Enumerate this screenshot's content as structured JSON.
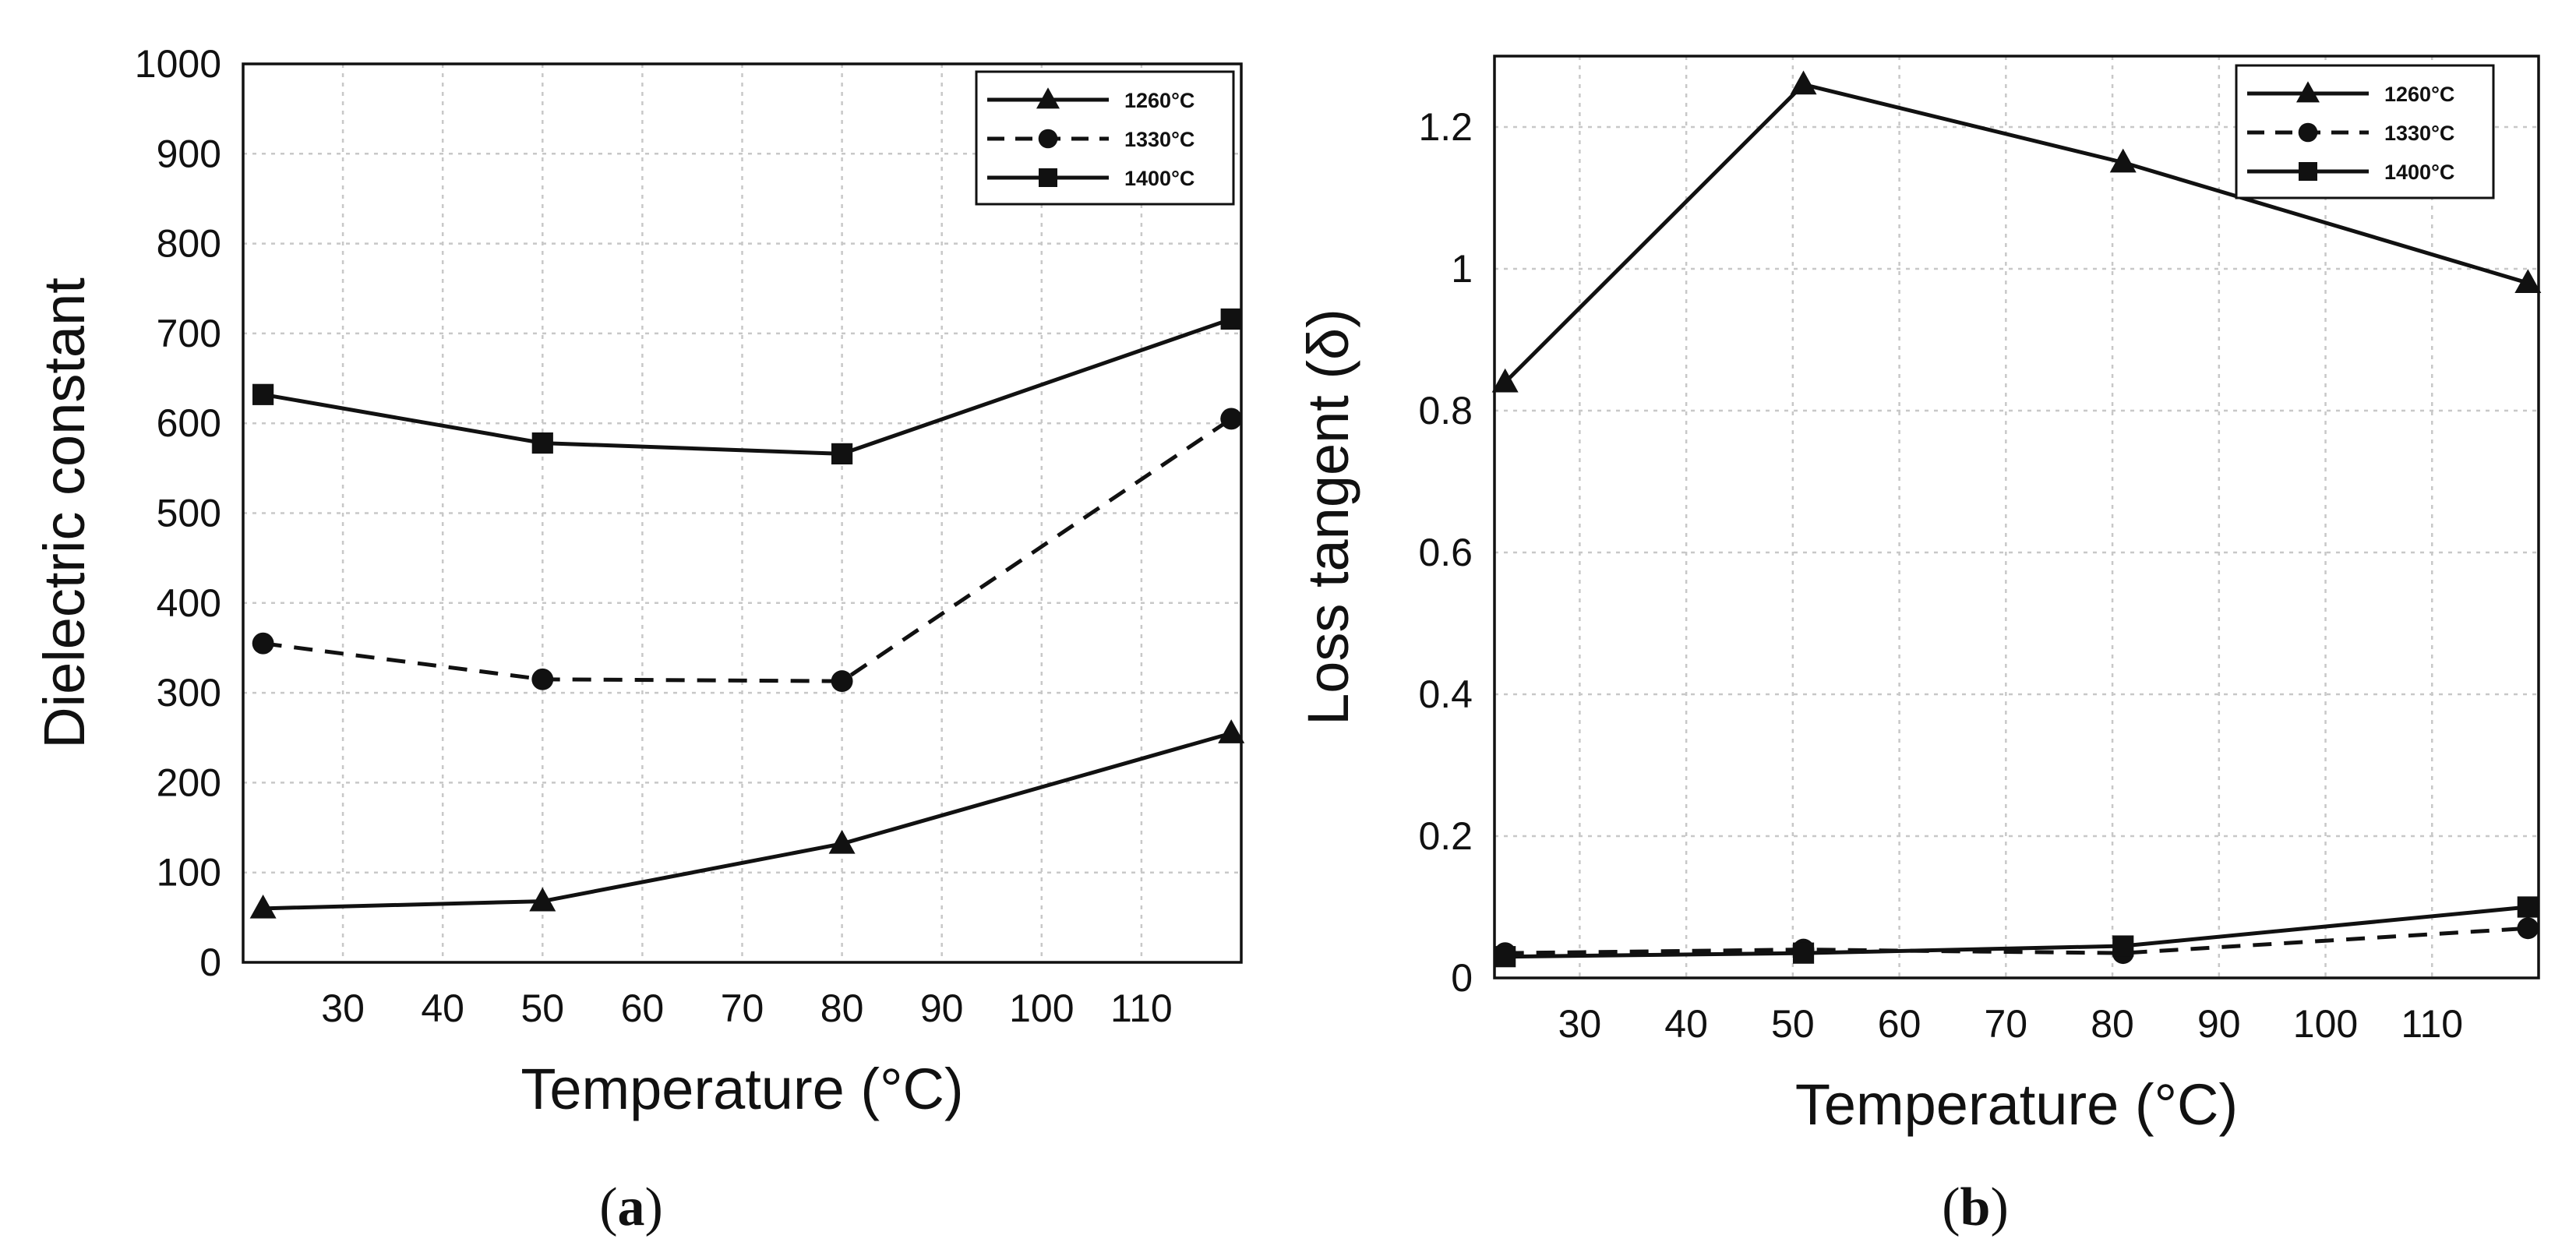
{
  "figure": {
    "panel_a_label": {
      "open": "(",
      "letter": "a",
      "close": ")"
    },
    "panel_b_label": {
      "open": "(",
      "letter": "b",
      "close": ")"
    }
  },
  "chart_data": [
    {
      "type": "line",
      "panel": "a",
      "title": "",
      "xlabel": "Temperature (°C)",
      "ylabel": "Dielectric constant",
      "xlim": [
        20,
        120
      ],
      "ylim": [
        0,
        1000
      ],
      "xticks": [
        30,
        40,
        50,
        60,
        70,
        80,
        90,
        100,
        110
      ],
      "yticks": [
        0,
        100,
        200,
        300,
        400,
        500,
        600,
        700,
        800,
        900,
        1000
      ],
      "grid": true,
      "legend_position": "top-right",
      "x": [
        22,
        50,
        80,
        119
      ],
      "series": [
        {
          "name": "1260°C",
          "marker": "triangle",
          "line": "solid",
          "values": [
            60,
            68,
            132,
            255
          ]
        },
        {
          "name": "1330°C",
          "marker": "circle",
          "line": "dashed",
          "values": [
            355,
            315,
            313,
            605
          ]
        },
        {
          "name": "1400°C",
          "marker": "square",
          "line": "solid",
          "values": [
            632,
            578,
            566,
            716
          ]
        }
      ]
    },
    {
      "type": "line",
      "panel": "b",
      "title": "",
      "xlabel": "Temperature (°C)",
      "ylabel": "Loss tangent (δ)",
      "xlim": [
        22,
        120
      ],
      "ylim": [
        0,
        1.3
      ],
      "xticks": [
        30,
        40,
        50,
        60,
        70,
        80,
        90,
        100,
        110
      ],
      "yticks": [
        0,
        0.2,
        0.4,
        0.6,
        0.8,
        1,
        1.2
      ],
      "grid": true,
      "legend_position": "top-right",
      "x": [
        23,
        51,
        81,
        119
      ],
      "series": [
        {
          "name": "1260°C",
          "marker": "triangle",
          "line": "solid",
          "values": [
            0.84,
            1.26,
            1.15,
            0.98
          ]
        },
        {
          "name": "1330°C",
          "marker": "circle",
          "line": "dashed",
          "values": [
            0.035,
            0.04,
            0.035,
            0.07
          ]
        },
        {
          "name": "1400°C",
          "marker": "square",
          "line": "solid",
          "values": [
            0.03,
            0.035,
            0.045,
            0.1
          ]
        }
      ]
    }
  ]
}
